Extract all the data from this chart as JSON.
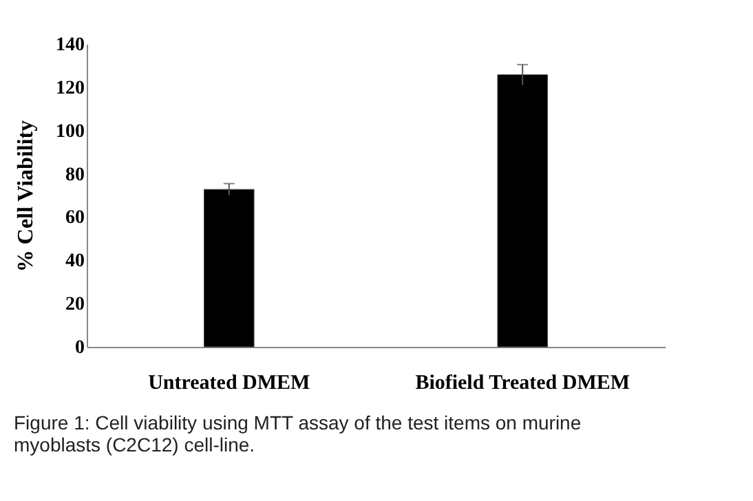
{
  "chart_data": {
    "type": "bar",
    "categories": [
      "Untreated DMEM",
      "Biofield Treated DMEM"
    ],
    "values": [
      72.8,
      125.8
    ],
    "errors": [
      2.7,
      4.7
    ],
    "color": "#000000",
    "ylabel": "% Cell Viability",
    "ylim": [
      0,
      140
    ],
    "yticks": [
      0,
      20,
      40,
      60,
      80,
      100,
      120,
      140
    ],
    "grid": false,
    "annotations": [
      "Figure 1: Cell viability using MTT assay of the test items on murine myoblasts (C2C12) cell-line."
    ]
  }
}
